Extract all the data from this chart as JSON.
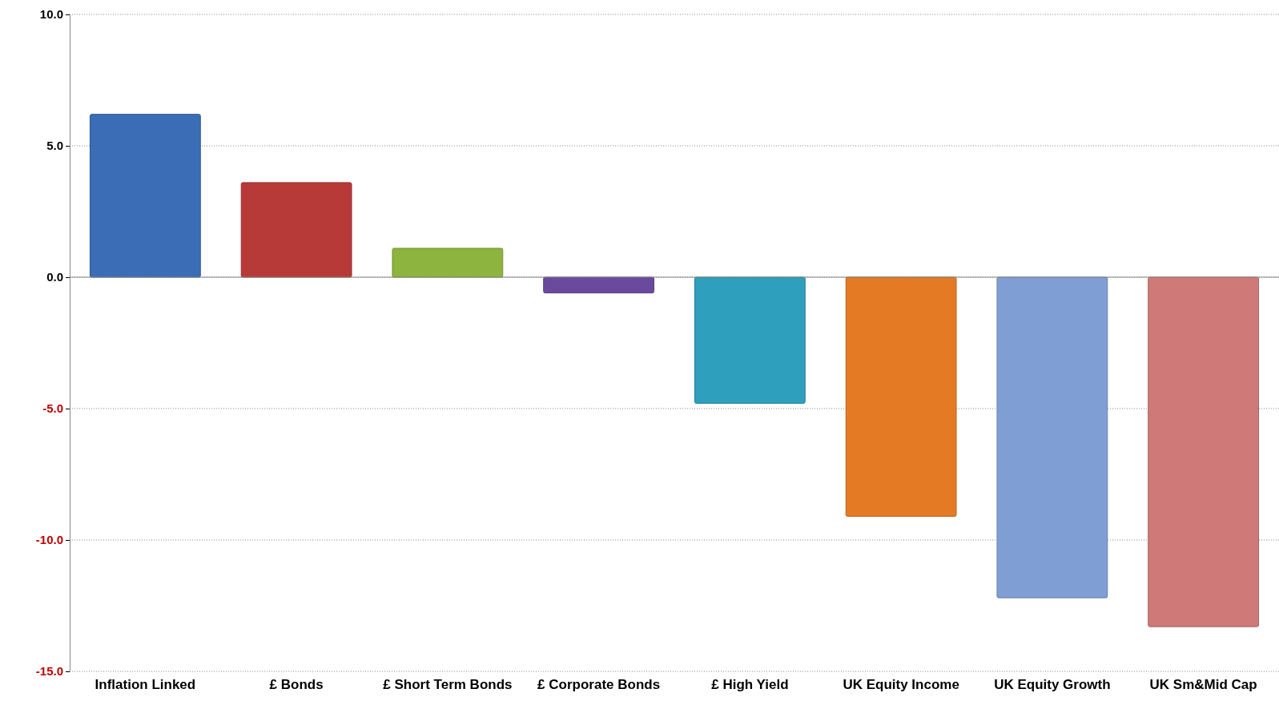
{
  "chart_data": {
    "type": "bar",
    "categories": [
      "Inflation Linked",
      "£ Bonds",
      "£ Short Term Bonds",
      "£ Corporate Bonds",
      "£ High Yield",
      "UK Equity Income",
      "UK Equity Growth",
      "UK Sm&Mid Cap"
    ],
    "values": [
      6.2,
      3.6,
      1.1,
      -0.6,
      -4.8,
      -9.1,
      -12.2,
      -13.3
    ],
    "colors": [
      "#3a6db5",
      "#b83a38",
      "#8cb43e",
      "#6a4a9c",
      "#2e9fbd",
      "#e57a25",
      "#7f9fd4",
      "#cf7a78"
    ],
    "ylim": [
      -15,
      10
    ],
    "yticks": [
      {
        "value": -15,
        "label": "-15.0"
      },
      {
        "value": -10,
        "label": "-10.0"
      },
      {
        "value": -5,
        "label": "-5.0"
      },
      {
        "value": 0,
        "label": "0.0"
      },
      {
        "value": 5,
        "label": "5.0"
      },
      {
        "value": 10,
        "label": "10.0"
      }
    ],
    "grid": "y"
  }
}
